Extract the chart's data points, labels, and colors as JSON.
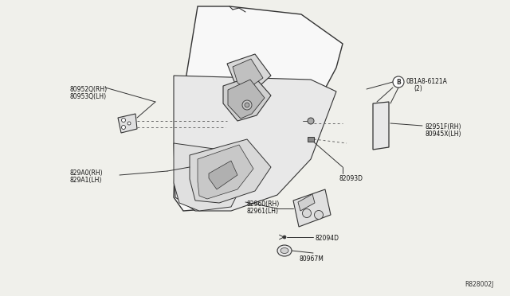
{
  "bg_color": "#f0f0eb",
  "line_color": "#333333",
  "ref_code": "R828002J",
  "labels": {
    "top_left_1": "80952Q(RH)",
    "top_left_2": "80953Q(LH)",
    "top_right_circle_label": "0B1A8-6121A",
    "top_right_circle_sub": "(2)",
    "right_upper_1": "82951F(RH)",
    "right_upper_2": "80945X(LH)",
    "right_lower": "82093D",
    "left_lower_1": "829A0(RH)",
    "left_lower_2": "829A1(LH)",
    "center_lower_1": "82960(RH)",
    "center_lower_2": "82961(LH)",
    "bottom_1": "82094D",
    "bottom_2": "80967M"
  },
  "figsize": [
    6.4,
    3.72
  ],
  "dpi": 100
}
